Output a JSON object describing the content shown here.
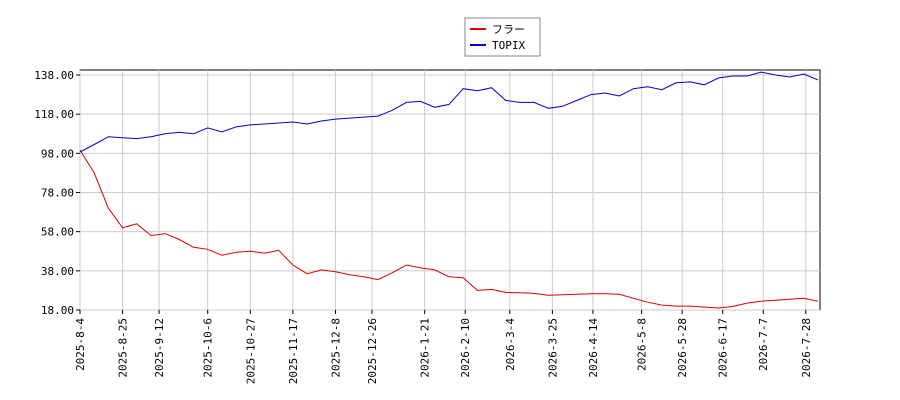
{
  "chart_data": {
    "type": "line",
    "x": [
      "2025-8-4",
      "2025-8-11",
      "2025-8-18",
      "2025-8-25",
      "2025-9-1",
      "2025-9-8",
      "2025-9-15",
      "2025-9-22",
      "2025-9-29",
      "2025-10-6",
      "2025-10-13",
      "2025-10-20",
      "2025-10-27",
      "2025-11-3",
      "2025-11-10",
      "2025-11-17",
      "2025-11-24",
      "2025-12-1",
      "2025-12-8",
      "2025-12-15",
      "2025-12-22",
      "2025-12-29",
      "2026-1-5",
      "2026-1-12",
      "2026-1-19",
      "2026-1-26",
      "2026-2-2",
      "2026-2-9",
      "2026-2-16",
      "2026-2-23",
      "2026-3-2",
      "2026-3-9",
      "2026-3-16",
      "2026-3-23",
      "2026-3-30",
      "2026-4-6",
      "2026-4-13",
      "2026-4-20",
      "2026-4-27",
      "2026-5-4",
      "2026-5-11",
      "2026-5-18",
      "2026-5-25",
      "2026-6-1",
      "2026-6-8",
      "2026-6-15",
      "2026-6-22",
      "2026-6-29",
      "2026-7-6",
      "2026-7-13",
      "2026-7-20",
      "2026-7-27",
      "2026-8-3"
    ],
    "series": [
      {
        "name": "フラー",
        "color": "#dd0000",
        "values": [
          99.7,
          88,
          70,
          60,
          62,
          56,
          57,
          54,
          50,
          49,
          46,
          47.5,
          48,
          47,
          48.5,
          41,
          36.5,
          38.5,
          37.5,
          36,
          35,
          33.5,
          37,
          41,
          39.5,
          38.5,
          35,
          34.5,
          28,
          28.5,
          27,
          26.8,
          26.5,
          25.5,
          25.8,
          26,
          26.3,
          26.3,
          26,
          24,
          22,
          20.5,
          20,
          20,
          19.5,
          19,
          19.8,
          21.5,
          22.5,
          23,
          23.5,
          24,
          22.5
        ]
      },
      {
        "name": "TOPIX",
        "color": "#0000cc",
        "values": [
          98.7,
          102.5,
          106.5,
          106,
          105.5,
          106.5,
          108,
          108.8,
          108,
          111,
          109,
          111.5,
          112.5,
          113,
          113.5,
          114,
          113,
          114.5,
          115.5,
          116,
          116.5,
          117,
          120,
          124,
          124.5,
          121.5,
          123,
          131,
          130,
          131.5,
          125,
          124,
          124,
          121,
          122,
          125,
          128,
          128.8,
          127.3,
          131,
          132,
          130.5,
          134,
          134.5,
          133,
          136.5,
          137.5,
          137.5,
          139.5,
          138,
          137,
          138.5,
          135.5
        ]
      }
    ],
    "xlim": [
      "2025-8-4",
      "2026-8-4"
    ],
    "xticks": [
      "2025-8-4",
      "2025-8-25",
      "2025-9-12",
      "2025-10-6",
      "2025-10-27",
      "2025-11-17",
      "2025-12-8",
      "2025-12-26",
      "2026-1-21",
      "2026-2-10",
      "2026-3-4",
      "2026-3-25",
      "2026-4-14",
      "2026-5-8",
      "2026-5-28",
      "2026-6-17",
      "2026-7-7",
      "2026-7-28"
    ],
    "ylim": [
      18,
      138
    ],
    "yticks": [
      {
        "value": 18,
        "label": "18.00"
      },
      {
        "value": 38,
        "label": "38.00"
      },
      {
        "value": 58,
        "label": "58.00"
      },
      {
        "value": 78,
        "label": "78.00"
      },
      {
        "value": 98,
        "label": "98.00"
      },
      {
        "value": 118,
        "label": "118.00"
      },
      {
        "value": 138,
        "label": "138.00"
      }
    ],
    "grid": true,
    "legend": "top"
  }
}
